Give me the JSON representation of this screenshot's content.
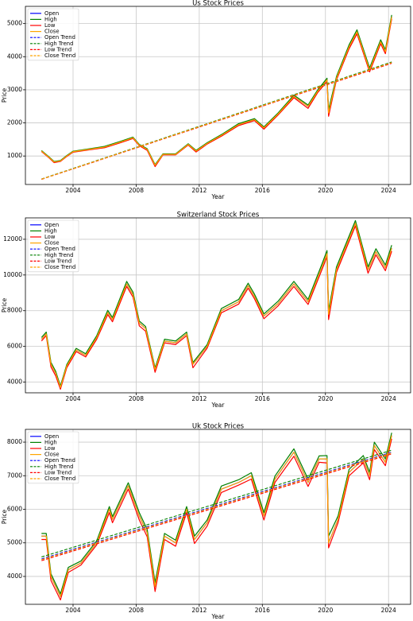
{
  "chart_data": [
    {
      "type": "line",
      "title": "Us Stock Prices",
      "xlabel": "Year",
      "ylabel": "Price",
      "grid": true,
      "legend": "upper left",
      "xlim": [
        2000.98,
        2025.4
      ],
      "xticks": [
        2004,
        2008,
        2012,
        2016,
        2020,
        2024
      ],
      "ylim": [
        140,
        5520
      ],
      "yticks": [
        1000,
        2000,
        3000,
        4000,
        5000
      ],
      "x": [
        2002.0,
        2002.5,
        2002.8,
        2003.2,
        2003.6,
        2004.0,
        2005.0,
        2006.0,
        2007.0,
        2007.8,
        2008.2,
        2008.7,
        2009.2,
        2009.7,
        2010.5,
        2011.3,
        2011.8,
        2012.5,
        2013.5,
        2014.5,
        2015.5,
        2016.1,
        2017.0,
        2018.0,
        2018.9,
        2019.5,
        2020.1,
        2020.2,
        2020.7,
        2021.5,
        2022.0,
        2022.8,
        2023.5,
        2023.8,
        2024.2
      ],
      "series": [
        {
          "name": "Open",
          "color": "#0000ff",
          "style": "solid",
          "values": [
            1150,
            950,
            820,
            850,
            1000,
            1130,
            1200,
            1270,
            1420,
            1550,
            1330,
            1200,
            720,
            1050,
            1050,
            1350,
            1150,
            1380,
            1650,
            1950,
            2100,
            1850,
            2270,
            2800,
            2500,
            2950,
            3300,
            2300,
            3350,
            4300,
            4750,
            3600,
            4450,
            4150,
            5200
          ]
        },
        {
          "name": "High",
          "color": "#008000",
          "style": "solid",
          "values": [
            1165,
            965,
            835,
            865,
            1015,
            1145,
            1215,
            1290,
            1440,
            1570,
            1350,
            1220,
            740,
            1065,
            1065,
            1370,
            1170,
            1400,
            1675,
            1980,
            2130,
            1880,
            2300,
            2840,
            2540,
            2990,
            3350,
            2400,
            3400,
            4360,
            4810,
            3660,
            4510,
            4210,
            5260
          ]
        },
        {
          "name": "Low",
          "color": "#ff0000",
          "style": "solid",
          "values": [
            1135,
            935,
            800,
            835,
            985,
            1115,
            1185,
            1250,
            1400,
            1530,
            1310,
            1170,
            680,
            1035,
            1035,
            1330,
            1120,
            1360,
            1625,
            1920,
            2070,
            1810,
            2240,
            2760,
            2440,
            2910,
            3250,
            2200,
            3300,
            4240,
            4690,
            3540,
            4390,
            4090,
            5140
          ]
        },
        {
          "name": "Close",
          "color": "#ffa500",
          "style": "solid",
          "values": [
            1150,
            950,
            820,
            850,
            1000,
            1130,
            1200,
            1270,
            1420,
            1550,
            1330,
            1200,
            720,
            1050,
            1050,
            1350,
            1150,
            1380,
            1650,
            1950,
            2100,
            1850,
            2270,
            2800,
            2500,
            2950,
            3300,
            2300,
            3350,
            4300,
            4750,
            3600,
            4450,
            4150,
            5200
          ]
        },
        {
          "name": "Open Trend",
          "color": "#0000ff",
          "style": "dashed",
          "x": [
            2002.0,
            2024.2
          ],
          "values": [
            300,
            3820
          ]
        },
        {
          "name": "High Trend",
          "color": "#008000",
          "style": "dashed",
          "x": [
            2002.0,
            2024.2
          ],
          "values": [
            305,
            3840
          ]
        },
        {
          "name": "Low Trend",
          "color": "#ff0000",
          "style": "dashed",
          "x": [
            2002.0,
            2024.2
          ],
          "values": [
            295,
            3800
          ]
        },
        {
          "name": "Close Trend",
          "color": "#ffa500",
          "style": "dashed",
          "x": [
            2002.0,
            2024.2
          ],
          "values": [
            300,
            3820
          ]
        }
      ]
    },
    {
      "type": "line",
      "title": "Switzerland Stock Prices",
      "xlabel": "Year",
      "ylabel": "Price",
      "grid": true,
      "legend": "upper left",
      "xlim": [
        2000.98,
        2025.4
      ],
      "xticks": [
        2004,
        2008,
        2012,
        2016,
        2020,
        2024
      ],
      "ylim": [
        3400,
        13200
      ],
      "yticks": [
        4000,
        6000,
        8000,
        10000,
        12000
      ],
      "x": [
        2002.0,
        2002.3,
        2002.6,
        2002.9,
        2003.2,
        2003.6,
        2004.2,
        2004.8,
        2005.5,
        2006.2,
        2006.5,
        2007.4,
        2007.8,
        2008.2,
        2008.6,
        2009.2,
        2009.8,
        2010.5,
        2011.2,
        2011.6,
        2012.5,
        2013.4,
        2014.5,
        2015.1,
        2015.5,
        2016.1,
        2017.0,
        2018.0,
        2018.9,
        2019.8,
        2020.1,
        2020.2,
        2020.7,
        2021.9,
        2022.7,
        2023.2,
        2023.8,
        2024.2
      ],
      "series": [
        {
          "name": "Open",
          "color": "#0000ff",
          "style": "solid",
          "values": [
            6400,
            6700,
            5000,
            4500,
            3700,
            4900,
            5800,
            5500,
            6500,
            7900,
            7500,
            9500,
            8900,
            7300,
            7000,
            4700,
            6300,
            6200,
            6700,
            5000,
            6000,
            8000,
            8500,
            9400,
            8800,
            7700,
            8400,
            9500,
            8500,
            10500,
            11200,
            7800,
            10300,
            12900,
            10300,
            11300,
            10400,
            11500
          ]
        },
        {
          "name": "High",
          "color": "#008000",
          "style": "solid",
          "values": [
            6500,
            6800,
            5100,
            4600,
            3780,
            4980,
            5890,
            5590,
            6600,
            8020,
            7620,
            9640,
            9040,
            7420,
            7110,
            4800,
            6400,
            6300,
            6800,
            5100,
            6100,
            8120,
            8630,
            9540,
            8930,
            7820,
            8530,
            9640,
            8630,
            10660,
            11370,
            8000,
            10450,
            13050,
            10460,
            11470,
            10560,
            11670
          ]
        },
        {
          "name": "Low",
          "color": "#ff0000",
          "style": "solid",
          "values": [
            6300,
            6600,
            4850,
            4350,
            3600,
            4800,
            5710,
            5410,
            6400,
            7780,
            7380,
            9360,
            8760,
            7150,
            6850,
            4550,
            6200,
            6100,
            6600,
            4800,
            5900,
            7880,
            8370,
            9260,
            8670,
            7550,
            8270,
            9360,
            8350,
            10340,
            11030,
            7500,
            10150,
            12750,
            10100,
            11130,
            10240,
            11330
          ]
        },
        {
          "name": "Close",
          "color": "#ffa500",
          "style": "solid",
          "values": [
            6400,
            6700,
            5000,
            4500,
            3700,
            4900,
            5800,
            5500,
            6500,
            7900,
            7500,
            9500,
            8900,
            7300,
            7000,
            4700,
            6300,
            6200,
            6700,
            5000,
            6000,
            8000,
            8500,
            9400,
            8800,
            7700,
            8400,
            9500,
            8500,
            10500,
            11200,
            7800,
            10300,
            12900,
            10300,
            11300,
            10400,
            11500
          ]
        },
        {
          "name": "Open Trend",
          "color": "#0000ff",
          "style": "dashed"
        },
        {
          "name": "High Trend",
          "color": "#008000",
          "style": "dashed"
        },
        {
          "name": "Low Trend",
          "color": "#ff0000",
          "style": "dashed"
        },
        {
          "name": "Close Trend",
          "color": "#ffa500",
          "style": "dashed"
        }
      ]
    },
    {
      "type": "line",
      "title": "Uk Stock Prices",
      "xlabel": "Year",
      "ylabel": "Price",
      "grid": true,
      "legend": "upper left",
      "xlim": [
        2000.98,
        2025.4
      ],
      "xticks": [
        2004,
        2008,
        2012,
        2016,
        2020,
        2024
      ],
      "ylim": [
        3170,
        8380
      ],
      "yticks": [
        4000,
        5000,
        6000,
        7000,
        8000
      ],
      "x": [
        2002.0,
        2002.3,
        2002.6,
        2003.2,
        2003.7,
        2004.5,
        2005.5,
        2006.3,
        2006.5,
        2007.5,
        2008.2,
        2008.7,
        2009.2,
        2009.8,
        2010.5,
        2011.2,
        2011.7,
        2012.5,
        2013.4,
        2014.5,
        2015.3,
        2016.1,
        2016.8,
        2018.0,
        2018.9,
        2019.6,
        2020.1,
        2020.2,
        2020.8,
        2021.5,
        2022.4,
        2022.8,
        2023.1,
        2023.8,
        2024.2
      ],
      "series": [
        {
          "name": "Open",
          "color": "#0000ff",
          "style": "solid",
          "values": [
            5200,
            5200,
            4000,
            3400,
            4200,
            4400,
            5000,
            6000,
            5700,
            6700,
            5800,
            5300,
            3700,
            5200,
            5000,
            6000,
            5100,
            5600,
            6600,
            6800,
            7000,
            5800,
            6900,
            7700,
            6800,
            7500,
            7500,
            5000,
            5700,
            7100,
            7500,
            7000,
            7900,
            7400,
            8200
          ]
        },
        {
          "name": "High",
          "color": "#008000",
          "style": "solid",
          "values": [
            5280,
            5280,
            4080,
            3480,
            4270,
            4460,
            5060,
            6080,
            5780,
            6790,
            5900,
            5400,
            3820,
            5280,
            5080,
            6080,
            5200,
            5680,
            6690,
            6880,
            7090,
            5900,
            6990,
            7800,
            6900,
            7590,
            7600,
            5200,
            5800,
            7190,
            7600,
            7100,
            8000,
            7500,
            8280
          ]
        },
        {
          "name": "Low",
          "color": "#ff0000",
          "style": "solid",
          "values": [
            5100,
            5100,
            3880,
            3300,
            4120,
            4340,
            4940,
            5900,
            5600,
            6600,
            5680,
            5180,
            3550,
            5100,
            4900,
            5900,
            4980,
            5500,
            6500,
            6720,
            6900,
            5680,
            6800,
            7580,
            6680,
            7400,
            7380,
            4850,
            5600,
            7000,
            7380,
            6880,
            7780,
            7300,
            8100
          ]
        },
        {
          "name": "Close",
          "color": "#ffa500",
          "style": "solid",
          "values": [
            5200,
            5200,
            4000,
            3400,
            4200,
            4400,
            5000,
            6000,
            5700,
            6700,
            5800,
            5300,
            3700,
            5200,
            5000,
            6000,
            5100,
            5600,
            6600,
            6800,
            7000,
            5800,
            6900,
            7700,
            6800,
            7500,
            7500,
            5000,
            5700,
            7100,
            7500,
            7000,
            7900,
            7400,
            8200
          ]
        },
        {
          "name": "Open Trend",
          "color": "#0000ff",
          "style": "dashed",
          "x": [
            2002.0,
            2024.2
          ],
          "values": [
            4520,
            7700
          ]
        },
        {
          "name": "High Trend",
          "color": "#008000",
          "style": "dashed",
          "x": [
            2002.0,
            2024.2
          ],
          "values": [
            4580,
            7760
          ]
        },
        {
          "name": "Low Trend",
          "color": "#ff0000",
          "style": "dashed",
          "x": [
            2002.0,
            2024.2
          ],
          "values": [
            4470,
            7650
          ]
        },
        {
          "name": "Close Trend",
          "color": "#ffa500",
          "style": "dashed",
          "x": [
            2002.0,
            2024.2
          ],
          "values": [
            4500,
            7680
          ]
        }
      ]
    }
  ]
}
